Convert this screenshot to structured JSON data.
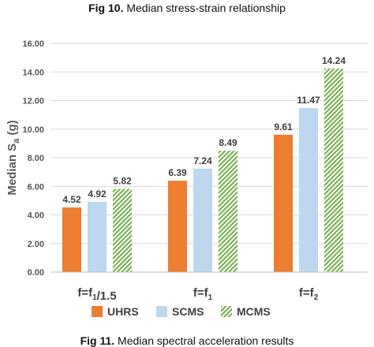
{
  "captions": {
    "top_bold": "Fig 10.",
    "top_rest": " Median stress-strain relationship",
    "bottom_bold": "Fig 11.",
    "bottom_rest": " Median spectral acceleration results"
  },
  "colors": {
    "UHRS": "#ED7D31",
    "SCMS": "#BDD7EE",
    "MCMS": "#70AD47",
    "grid": "#D9D9D9"
  },
  "chart_data": {
    "type": "bar",
    "title": "",
    "xlabel": "",
    "ylabel": "Median S_a (g)",
    "ylim": [
      0,
      16
    ],
    "yticks": [
      "0.00",
      "2.00",
      "4.00",
      "6.00",
      "8.00",
      "10.00",
      "12.00",
      "14.00",
      "16.00"
    ],
    "grid": true,
    "legend_position": "bottom",
    "categories": [
      "f=f1/1.5",
      "f=f1",
      "f=f2"
    ],
    "series": [
      {
        "name": "UHRS",
        "values": [
          4.52,
          6.39,
          9.61
        ],
        "labels": [
          "4.52",
          "6.39",
          "9.61"
        ],
        "fill": "solid"
      },
      {
        "name": "SCMS",
        "values": [
          4.92,
          7.24,
          11.47
        ],
        "labels": [
          "4.92",
          "7.24",
          "11.47"
        ],
        "fill": "solid"
      },
      {
        "name": "MCMS",
        "values": [
          5.82,
          8.49,
          14.24
        ],
        "labels": [
          "5.82",
          "8.49",
          "14.24"
        ],
        "fill": "hatched"
      }
    ]
  }
}
